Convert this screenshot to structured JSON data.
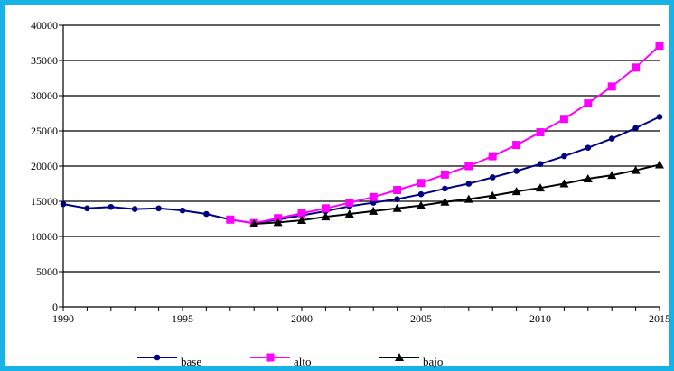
{
  "chart_data": {
    "type": "line",
    "title": "",
    "xlabel": "",
    "ylabel": "",
    "xlim": [
      1990,
      2015
    ],
    "ylim": [
      0,
      40000
    ],
    "x_ticks": [
      1990,
      1995,
      2000,
      2005,
      2010,
      2015
    ],
    "y_ticks": [
      0,
      5000,
      10000,
      15000,
      20000,
      25000,
      30000,
      35000,
      40000
    ],
    "grid": "horizontal",
    "legend_position": "bottom",
    "series": [
      {
        "name": "base",
        "color": "#000080",
        "marker": "circle",
        "x": [
          1990,
          1991,
          1992,
          1993,
          1994,
          1995,
          1996,
          1997,
          1998,
          1999,
          2000,
          2001,
          2002,
          2003,
          2004,
          2005,
          2006,
          2007,
          2008,
          2009,
          2010,
          2011,
          2012,
          2013,
          2014,
          2015
        ],
        "values": [
          14600,
          14000,
          14200,
          13900,
          14000,
          13700,
          13200,
          12400,
          11900,
          12400,
          13000,
          13600,
          14300,
          14800,
          15300,
          16000,
          16800,
          17500,
          18400,
          19300,
          20300,
          21400,
          22600,
          23900,
          25400,
          27000
        ]
      },
      {
        "name": "alto",
        "color": "#ff00ff",
        "marker": "square",
        "x": [
          1997,
          1998,
          1999,
          2000,
          2001,
          2002,
          2003,
          2004,
          2005,
          2006,
          2007,
          2008,
          2009,
          2010,
          2011,
          2012,
          2013,
          2014,
          2015
        ],
        "values": [
          12400,
          11900,
          12600,
          13300,
          14000,
          14800,
          15600,
          16600,
          17600,
          18800,
          20000,
          21400,
          23000,
          24800,
          26700,
          28900,
          31300,
          34000,
          37100
        ]
      },
      {
        "name": "bajo",
        "color": "#000000",
        "marker": "triangle",
        "x": [
          1998,
          1999,
          2000,
          2001,
          2002,
          2003,
          2004,
          2005,
          2006,
          2007,
          2008,
          2009,
          2010,
          2011,
          2012,
          2013,
          2014,
          2015
        ],
        "values": [
          11800,
          12000,
          12300,
          12800,
          13200,
          13600,
          14000,
          14400,
          14900,
          15300,
          15800,
          16400,
          16900,
          17500,
          18200,
          18700,
          19400,
          20200
        ]
      }
    ]
  }
}
